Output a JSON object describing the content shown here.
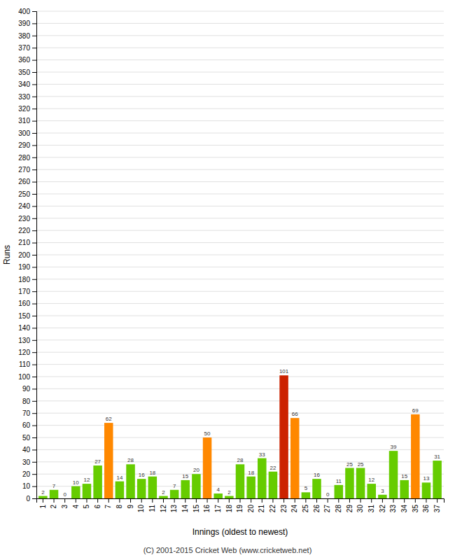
{
  "chart_data": {
    "type": "bar",
    "categories": [
      1,
      2,
      3,
      4,
      5,
      6,
      7,
      8,
      9,
      10,
      11,
      12,
      13,
      14,
      15,
      16,
      17,
      18,
      19,
      20,
      21,
      22,
      23,
      24,
      25,
      26,
      27,
      28,
      29,
      30,
      31,
      32,
      33,
      34,
      35,
      36,
      37
    ],
    "values": [
      2,
      7,
      0,
      10,
      12,
      27,
      62,
      14,
      28,
      16,
      18,
      2,
      7,
      15,
      20,
      50,
      4,
      2,
      28,
      18,
      33,
      22,
      101,
      66,
      5,
      16,
      0,
      11,
      25,
      25,
      12,
      3,
      39,
      15,
      69,
      13,
      31
    ],
    "colors": [
      "#66cc00",
      "#66cc00",
      "#66cc00",
      "#66cc00",
      "#66cc00",
      "#66cc00",
      "#ff8800",
      "#66cc00",
      "#66cc00",
      "#66cc00",
      "#66cc00",
      "#66cc00",
      "#66cc00",
      "#66cc00",
      "#66cc00",
      "#ff8800",
      "#66cc00",
      "#66cc00",
      "#66cc00",
      "#66cc00",
      "#66cc00",
      "#66cc00",
      "#cc2200",
      "#ff8800",
      "#66cc00",
      "#66cc00",
      "#66cc00",
      "#66cc00",
      "#66cc00",
      "#66cc00",
      "#66cc00",
      "#66cc00",
      "#66cc00",
      "#66cc00",
      "#ff8800",
      "#66cc00",
      "#66cc00"
    ],
    "xlabel": "Innings (oldest to newest)",
    "ylabel": "Runs",
    "ylim": [
      0,
      400
    ],
    "yticks": [
      0,
      10,
      20,
      30,
      40,
      50,
      60,
      70,
      80,
      90,
      100,
      110,
      120,
      130,
      140,
      150,
      160,
      170,
      180,
      190,
      200,
      210,
      220,
      230,
      240,
      250,
      260,
      270,
      280,
      290,
      300,
      310,
      320,
      330,
      340,
      350,
      360,
      370,
      380,
      390,
      400
    ],
    "grid": true,
    "data_labels": true,
    "annotations": [
      "(C) 2001-2015 Cricket Web (www.cricketweb.net)"
    ]
  }
}
